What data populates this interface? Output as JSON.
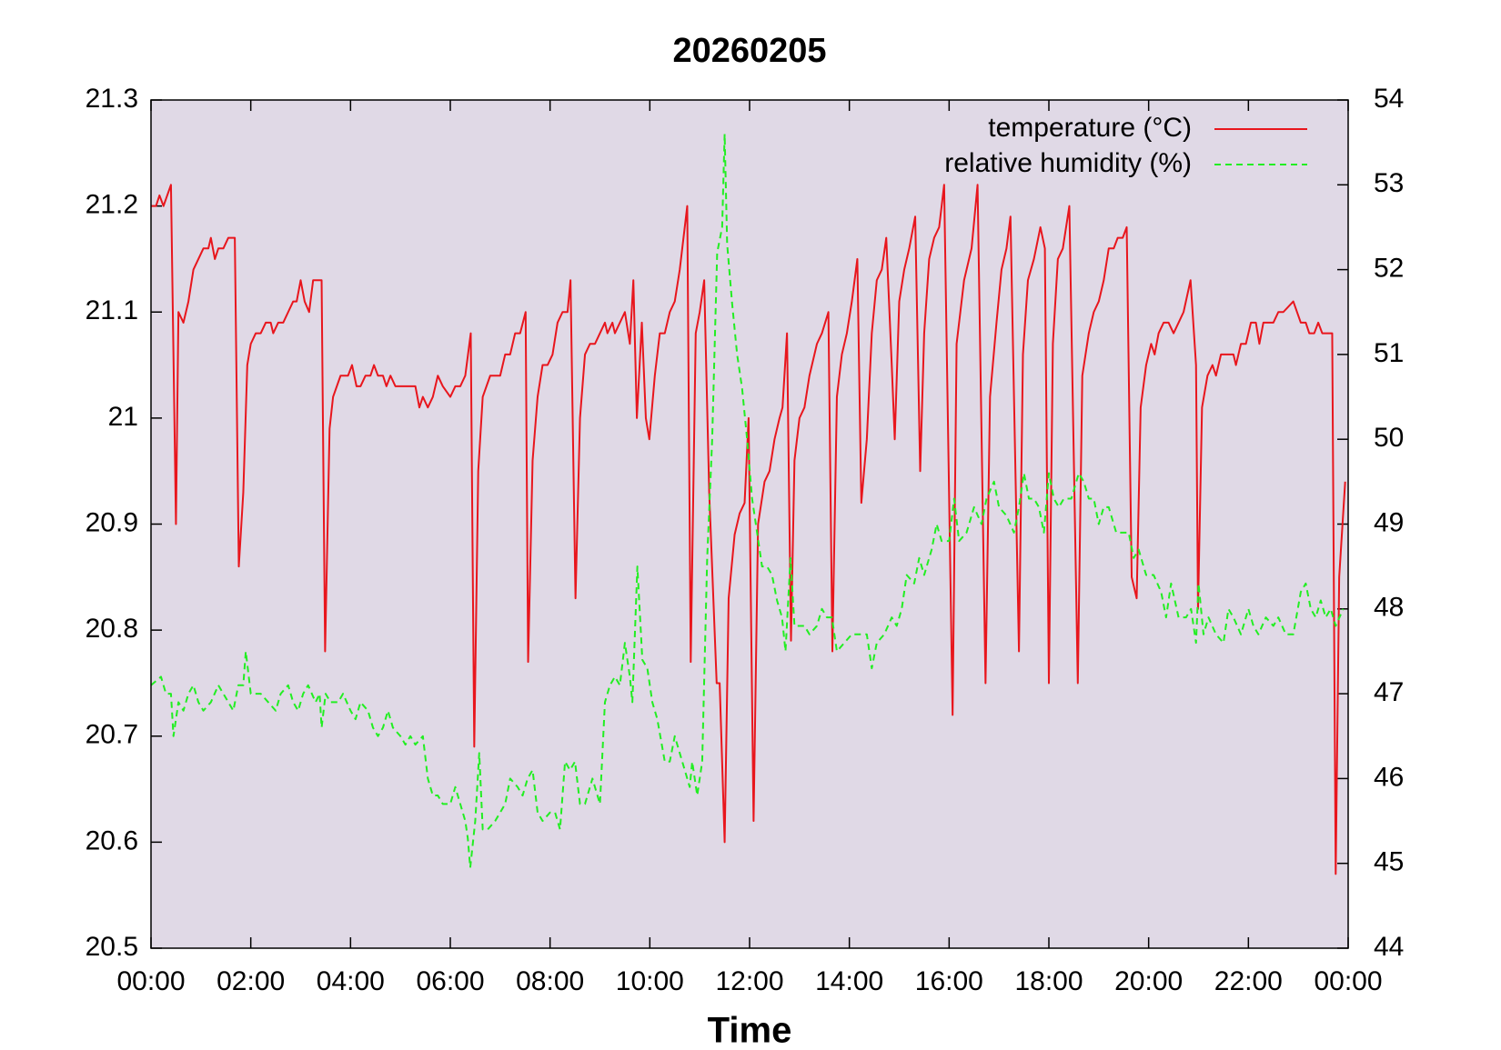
{
  "chart_data": {
    "type": "line",
    "title": "20260205",
    "xlabel": "Time",
    "xlim": [
      0,
      24
    ],
    "xticks": [
      {
        "value": 0,
        "label": "00:00"
      },
      {
        "value": 2,
        "label": "02:00"
      },
      {
        "value": 4,
        "label": "04:00"
      },
      {
        "value": 6,
        "label": "06:00"
      },
      {
        "value": 8,
        "label": "08:00"
      },
      {
        "value": 10,
        "label": "10:00"
      },
      {
        "value": 12,
        "label": "12:00"
      },
      {
        "value": 14,
        "label": "14:00"
      },
      {
        "value": 16,
        "label": "16:00"
      },
      {
        "value": 18,
        "label": "18:00"
      },
      {
        "value": 20,
        "label": "20:00"
      },
      {
        "value": 22,
        "label": "22:00"
      },
      {
        "value": 24,
        "label": "00:00"
      }
    ],
    "ylim": [
      20.5,
      21.3
    ],
    "yticks": [
      20.5,
      20.6,
      20.7,
      20.8,
      20.9,
      21,
      21.1,
      21.2,
      21.3
    ],
    "y2lim": [
      44,
      54
    ],
    "y2ticks": [
      44,
      45,
      46,
      47,
      48,
      49,
      50,
      51,
      52,
      53,
      54
    ],
    "background": "#e0d9e6",
    "legend": "top-right",
    "series": [
      {
        "name": "temperature (°C)",
        "color": "#e8161d",
        "dashed": false,
        "x": [
          0,
          0.1,
          0.17,
          0.25,
          0.4,
          0.5,
          0.55,
          0.65,
          0.75,
          0.85,
          1.05,
          1.15,
          1.2,
          1.28,
          1.35,
          1.45,
          1.55,
          1.68,
          1.76,
          1.85,
          1.93,
          2.0,
          2.1,
          2.2,
          2.3,
          2.4,
          2.45,
          2.55,
          2.65,
          2.75,
          2.85,
          2.92,
          3.0,
          3.08,
          3.17,
          3.25,
          3.42,
          3.49,
          3.58,
          3.65,
          3.8,
          3.95,
          4.03,
          4.12,
          4.2,
          4.3,
          4.4,
          4.47,
          4.55,
          4.65,
          4.72,
          4.8,
          4.9,
          5.1,
          5.3,
          5.38,
          5.45,
          5.55,
          5.65,
          5.75,
          5.85,
          6.0,
          6.1,
          6.2,
          6.3,
          6.41,
          6.48,
          6.56,
          6.65,
          6.8,
          7.0,
          7.1,
          7.2,
          7.3,
          7.4,
          7.51,
          7.56,
          7.65,
          7.75,
          7.85,
          7.95,
          8.05,
          8.15,
          8.25,
          8.35,
          8.41,
          8.51,
          8.6,
          8.7,
          8.8,
          8.9,
          9.0,
          9.1,
          9.15,
          9.25,
          9.3,
          9.4,
          9.5,
          9.6,
          9.67,
          9.74,
          9.84,
          9.92,
          9.99,
          10.1,
          10.2,
          10.3,
          10.4,
          10.5,
          10.6,
          10.75,
          10.82,
          10.92,
          11.0,
          11.09,
          11.19,
          11.34,
          11.4,
          11.5,
          11.58,
          11.7,
          11.8,
          11.9,
          11.98,
          12.08,
          12.17,
          12.3,
          12.4,
          12.5,
          12.6,
          12.66,
          12.75,
          12.83,
          12.9,
          13.0,
          13.1,
          13.2,
          13.35,
          13.45,
          13.58,
          13.66,
          13.75,
          13.85,
          13.95,
          14.05,
          14.16,
          14.24,
          14.35,
          14.45,
          14.55,
          14.65,
          14.74,
          14.85,
          14.91,
          15.0,
          15.1,
          15.2,
          15.32,
          15.42,
          15.5,
          15.6,
          15.7,
          15.8,
          15.9,
          16.07,
          16.15,
          16.3,
          16.45,
          16.57,
          16.73,
          16.82,
          16.95,
          17.05,
          17.15,
          17.23,
          17.4,
          17.48,
          17.58,
          17.7,
          17.83,
          17.92,
          18.0,
          18.08,
          18.18,
          18.28,
          18.41,
          18.58,
          18.67,
          18.8,
          18.9,
          19.0,
          19.1,
          19.2,
          19.3,
          19.38,
          19.48,
          19.56,
          19.66,
          19.76,
          19.84,
          19.95,
          20.05,
          20.12,
          20.2,
          20.3,
          20.4,
          20.5,
          20.6,
          20.7,
          20.84,
          20.95,
          20.99,
          21.07,
          21.18,
          21.28,
          21.35,
          21.45,
          21.6,
          21.7,
          21.75,
          21.85,
          21.95,
          22.05,
          22.15,
          22.22,
          22.3,
          22.5,
          22.6,
          22.7,
          22.9,
          23.05,
          23.15,
          23.22,
          23.32,
          23.4,
          23.48,
          23.68,
          23.75,
          23.82,
          23.94
        ],
        "values": [
          21.2,
          21.2,
          21.21,
          21.2,
          21.22,
          20.9,
          21.1,
          21.09,
          21.11,
          21.14,
          21.16,
          21.16,
          21.17,
          21.15,
          21.16,
          21.16,
          21.17,
          21.17,
          20.86,
          20.93,
          21.05,
          21.07,
          21.08,
          21.08,
          21.09,
          21.09,
          21.08,
          21.09,
          21.09,
          21.1,
          21.11,
          21.11,
          21.13,
          21.11,
          21.1,
          21.13,
          21.13,
          20.78,
          20.99,
          21.02,
          21.04,
          21.04,
          21.05,
          21.03,
          21.03,
          21.04,
          21.04,
          21.05,
          21.04,
          21.04,
          21.03,
          21.04,
          21.03,
          21.03,
          21.03,
          21.01,
          21.02,
          21.01,
          21.02,
          21.04,
          21.03,
          21.02,
          21.03,
          21.03,
          21.04,
          21.08,
          20.69,
          20.95,
          21.02,
          21.04,
          21.04,
          21.06,
          21.06,
          21.08,
          21.08,
          21.1,
          20.77,
          20.96,
          21.02,
          21.05,
          21.05,
          21.06,
          21.09,
          21.1,
          21.1,
          21.13,
          20.83,
          21.0,
          21.06,
          21.07,
          21.07,
          21.08,
          21.09,
          21.08,
          21.09,
          21.08,
          21.09,
          21.1,
          21.07,
          21.13,
          21.0,
          21.09,
          21.0,
          20.98,
          21.04,
          21.08,
          21.08,
          21.1,
          21.11,
          21.14,
          21.2,
          20.77,
          21.08,
          21.1,
          21.13,
          20.93,
          20.75,
          20.75,
          20.6,
          20.83,
          20.89,
          20.91,
          20.92,
          21.0,
          20.62,
          20.9,
          20.94,
          20.95,
          20.98,
          21.0,
          21.01,
          21.08,
          20.79,
          20.96,
          21.0,
          21.01,
          21.04,
          21.07,
          21.08,
          21.1,
          20.78,
          21.02,
          21.06,
          21.08,
          21.11,
          21.15,
          20.92,
          20.98,
          21.08,
          21.13,
          21.14,
          21.17,
          21.05,
          20.98,
          21.11,
          21.14,
          21.16,
          21.19,
          20.95,
          21.08,
          21.15,
          21.17,
          21.18,
          21.22,
          20.72,
          21.07,
          21.13,
          21.16,
          21.22,
          20.75,
          21.02,
          21.09,
          21.14,
          21.16,
          21.19,
          20.78,
          21.06,
          21.13,
          21.15,
          21.18,
          21.16,
          20.75,
          21.07,
          21.15,
          21.16,
          21.2,
          20.75,
          21.04,
          21.08,
          21.1,
          21.11,
          21.13,
          21.16,
          21.16,
          21.17,
          21.17,
          21.18,
          20.85,
          20.83,
          21.01,
          21.05,
          21.07,
          21.06,
          21.08,
          21.09,
          21.09,
          21.08,
          21.09,
          21.1,
          21.13,
          21.05,
          20.82,
          21.01,
          21.04,
          21.05,
          21.04,
          21.06,
          21.06,
          21.06,
          21.05,
          21.07,
          21.07,
          21.09,
          21.09,
          21.07,
          21.09,
          21.09,
          21.1,
          21.1,
          21.11,
          21.09,
          21.09,
          21.08,
          21.08,
          21.09,
          21.08,
          21.08,
          20.57,
          20.85,
          20.94
        ]
      },
      {
        "name": "relative humidity (%)",
        "color": "#22ee22",
        "dashed": true,
        "axis": "y2",
        "x": [
          0,
          0.2,
          0.3,
          0.4,
          0.45,
          0.55,
          0.65,
          0.75,
          0.85,
          0.95,
          1.05,
          1.2,
          1.35,
          1.45,
          1.55,
          1.65,
          1.75,
          1.85,
          1.9,
          2.0,
          2.1,
          2.2,
          2.35,
          2.5,
          2.6,
          2.75,
          2.85,
          2.95,
          3.05,
          3.15,
          3.3,
          3.38,
          3.42,
          3.5,
          3.6,
          3.75,
          3.85,
          4.0,
          4.1,
          4.2,
          4.35,
          4.45,
          4.55,
          4.65,
          4.75,
          4.85,
          5.0,
          5.1,
          5.2,
          5.3,
          5.45,
          5.55,
          5.65,
          5.75,
          5.85,
          6.0,
          6.1,
          6.2,
          6.3,
          6.35,
          6.4,
          6.5,
          6.58,
          6.65,
          6.75,
          6.9,
          7.0,
          7.1,
          7.2,
          7.35,
          7.45,
          7.55,
          7.65,
          7.75,
          7.85,
          8.0,
          8.1,
          8.2,
          8.3,
          8.4,
          8.5,
          8.6,
          8.7,
          8.85,
          9.0,
          9.1,
          9.2,
          9.3,
          9.4,
          9.5,
          9.6,
          9.65,
          9.75,
          9.85,
          9.95,
          10.05,
          10.15,
          10.3,
          10.4,
          10.5,
          10.6,
          10.7,
          10.8,
          10.85,
          10.95,
          11.05,
          11.15,
          11.25,
          11.35,
          11.45,
          11.5,
          11.55,
          11.65,
          11.75,
          11.85,
          11.95,
          12.05,
          12.15,
          12.25,
          12.35,
          12.45,
          12.55,
          12.65,
          12.72,
          12.82,
          12.9,
          13.0,
          13.1,
          13.2,
          13.35,
          13.45,
          13.55,
          13.65,
          13.75,
          13.9,
          14.05,
          14.2,
          14.35,
          14.45,
          14.55,
          14.7,
          14.85,
          14.95,
          15.05,
          15.15,
          15.3,
          15.4,
          15.5,
          15.65,
          15.75,
          15.85,
          16.0,
          16.1,
          16.2,
          16.35,
          16.5,
          16.65,
          16.75,
          16.9,
          17.0,
          17.15,
          17.3,
          17.4,
          17.5,
          17.6,
          17.7,
          17.8,
          17.9,
          18.0,
          18.1,
          18.2,
          18.3,
          18.45,
          18.6,
          18.7,
          18.8,
          18.9,
          19.0,
          19.1,
          19.2,
          19.35,
          19.45,
          19.6,
          19.7,
          19.8,
          19.95,
          20.1,
          20.25,
          20.35,
          20.45,
          20.6,
          20.75,
          20.85,
          20.95,
          21.0,
          21.1,
          21.2,
          21.35,
          21.5,
          21.6,
          21.7,
          21.85,
          22.0,
          22.1,
          22.2,
          22.35,
          22.5,
          22.6,
          22.75,
          22.9,
          23.05,
          23.15,
          23.25,
          23.35,
          23.45,
          23.55,
          23.65,
          23.75,
          23.9
        ],
        "values": [
          47.1,
          47.2,
          47.0,
          47.0,
          46.5,
          46.9,
          46.8,
          47.0,
          47.1,
          46.9,
          46.8,
          46.9,
          47.1,
          47.0,
          46.9,
          46.8,
          47.1,
          47.1,
          47.5,
          47.0,
          47.0,
          47.0,
          46.9,
          46.8,
          47.0,
          47.1,
          46.9,
          46.8,
          47.0,
          47.1,
          46.9,
          47.0,
          46.6,
          47.0,
          46.9,
          46.9,
          47.0,
          46.8,
          46.7,
          46.9,
          46.8,
          46.6,
          46.5,
          46.6,
          46.8,
          46.6,
          46.5,
          46.4,
          46.5,
          46.4,
          46.5,
          46.0,
          45.8,
          45.8,
          45.7,
          45.7,
          45.9,
          45.7,
          45.5,
          45.3,
          44.95,
          45.5,
          46.3,
          45.4,
          45.4,
          45.5,
          45.6,
          45.7,
          46.0,
          45.9,
          45.8,
          46.0,
          46.1,
          45.6,
          45.5,
          45.6,
          45.6,
          45.4,
          46.2,
          46.1,
          46.2,
          45.7,
          45.7,
          46.0,
          45.7,
          46.9,
          47.1,
          47.2,
          47.1,
          47.6,
          47.2,
          46.9,
          48.5,
          47.4,
          47.3,
          46.9,
          46.7,
          46.2,
          46.2,
          46.5,
          46.3,
          46.1,
          45.9,
          46.2,
          45.8,
          46.2,
          48.6,
          50.0,
          52.2,
          52.5,
          53.6,
          52.3,
          51.6,
          51.0,
          50.6,
          50.0,
          49.3,
          48.9,
          48.5,
          48.5,
          48.4,
          48.1,
          47.9,
          47.5,
          48.6,
          47.8,
          47.8,
          47.8,
          47.7,
          47.8,
          48.0,
          47.9,
          47.9,
          47.5,
          47.6,
          47.7,
          47.7,
          47.7,
          47.3,
          47.6,
          47.7,
          47.9,
          47.8,
          48.0,
          48.4,
          48.3,
          48.6,
          48.4,
          48.7,
          49.0,
          48.8,
          48.8,
          49.3,
          48.8,
          48.9,
          49.2,
          49.0,
          49.3,
          49.5,
          49.2,
          49.1,
          48.9,
          49.2,
          49.6,
          49.3,
          49.3,
          49.2,
          48.9,
          49.6,
          49.3,
          49.2,
          49.3,
          49.3,
          49.6,
          49.5,
          49.3,
          49.3,
          49.0,
          49.2,
          49.2,
          48.9,
          48.9,
          48.9,
          48.6,
          48.7,
          48.4,
          48.4,
          48.2,
          47.9,
          48.3,
          47.9,
          47.9,
          48.0,
          47.6,
          48.3,
          47.7,
          47.9,
          47.7,
          47.6,
          48.0,
          47.9,
          47.7,
          48.0,
          47.8,
          47.7,
          47.9,
          47.8,
          47.9,
          47.7,
          47.7,
          48.2,
          48.3,
          48.0,
          47.9,
          48.1,
          47.9,
          48.0,
          47.8,
          48.0
        ]
      }
    ]
  }
}
